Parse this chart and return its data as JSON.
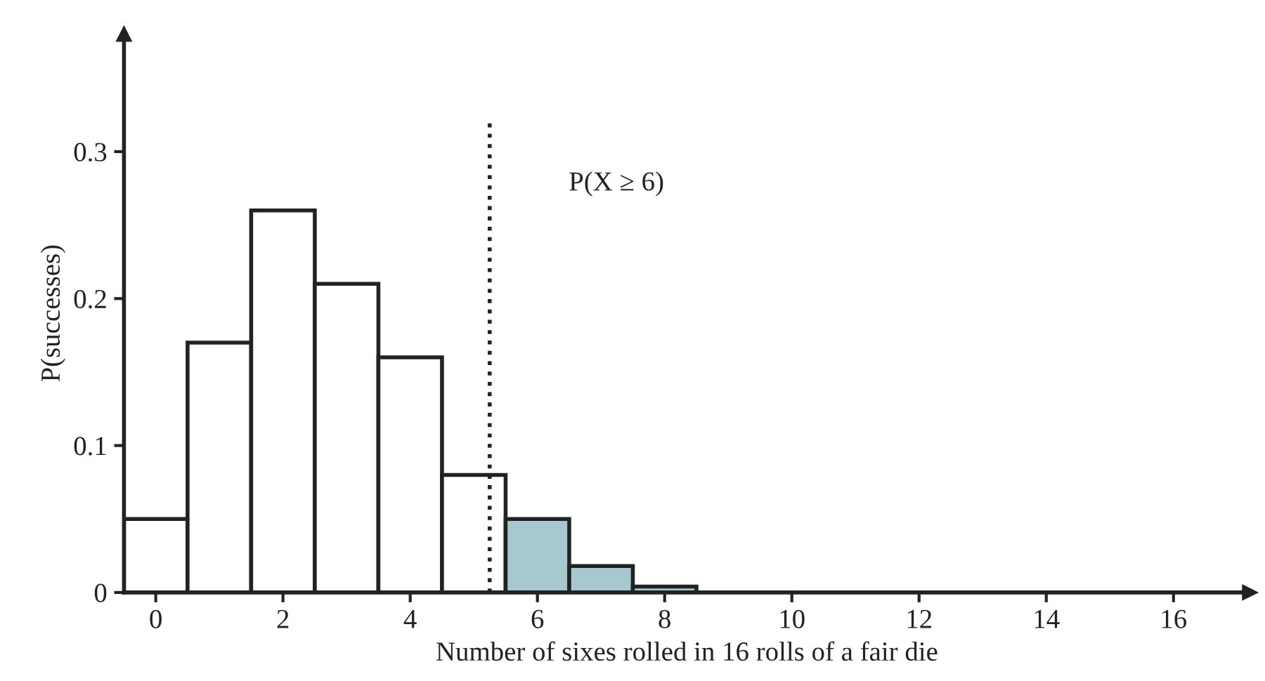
{
  "chart_data": {
    "type": "histogram",
    "xlabel": "Number of sixes rolled in 16 rolls of a fair die",
    "ylabel": "P(successes)",
    "bins": [
      -0.5,
      0.5,
      1.5,
      2.5,
      3.5,
      4.5,
      5.5,
      6.5,
      7.5,
      8.5
    ],
    "values": [
      0.05,
      0.17,
      0.26,
      0.21,
      0.16,
      0.08,
      0.05,
      0.018,
      0.004
    ],
    "colors": [
      "#ffffff",
      "#ffffff",
      "#ffffff",
      "#ffffff",
      "#ffffff",
      "#ffffff",
      "#a7c8cf",
      "#a7c8cf",
      "#a7c8cf"
    ],
    "xlim": [
      -0.5,
      17.2
    ],
    "ylim": [
      0,
      0.38
    ],
    "xticks": [
      0,
      2,
      4,
      6,
      8,
      10,
      12,
      14,
      16
    ],
    "yticks": [
      0,
      0.1,
      0.2,
      0.3
    ],
    "ref_lines": [
      {
        "axis": "x",
        "value": 5.25,
        "line_style": "dotted",
        "color": "#222222"
      }
    ],
    "annotations": [
      "P(X ≥ 6)"
    ],
    "grid": false,
    "legend": false
  }
}
